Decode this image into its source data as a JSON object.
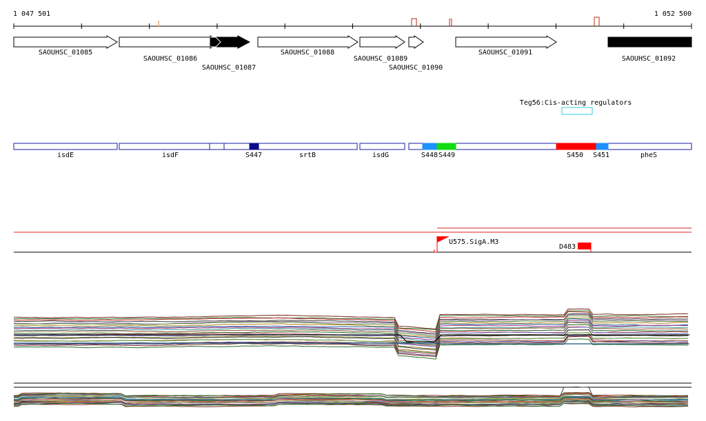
{
  "ruler": {
    "start_label": "1 047 501",
    "end_label": "1 052 500"
  },
  "genes": [
    {
      "id": "SAOUHSC_01085",
      "label": "SAOUHSC_01085",
      "style": "outline",
      "strand": "+"
    },
    {
      "id": "SAOUHSC_01086",
      "label": "SAOUHSC_01086",
      "style": "outline",
      "strand": "+"
    },
    {
      "id": "SAOUHSC_01087",
      "label": "SAOUHSC_01087",
      "style": "filled",
      "strand": "+"
    },
    {
      "id": "SAOUHSC_01088",
      "label": "SAOUHSC_01088",
      "style": "outline",
      "strand": "+"
    },
    {
      "id": "SAOUHSC_01089",
      "label": "SAOUHSC_01089",
      "style": "outline",
      "strand": "+"
    },
    {
      "id": "SAOUHSC_01090",
      "label": "SAOUHSC_01090",
      "style": "outline",
      "strand": "+"
    },
    {
      "id": "SAOUHSC_01091",
      "label": "SAOUHSC_01091",
      "style": "outline",
      "strand": "+"
    },
    {
      "id": "SAOUHSC_01092",
      "label": "SAOUHSC_01092",
      "style": "filled",
      "strand": "+"
    }
  ],
  "regulator": {
    "label": "Teg56:Cis-acting regulators",
    "color": "#33ccdd"
  },
  "segments": {
    "named": [
      "isdE",
      "isdF",
      "S447",
      "srtB",
      "isdG",
      "S448",
      "S449",
      "S450",
      "S451",
      "pheS"
    ],
    "colors": {
      "outline": "#1a1aa0",
      "S447": "#0a0a8c",
      "S448": "#1e90ff",
      "S449": "#11dd11",
      "S450": "#ff0000",
      "S451": "#1e90ff"
    }
  },
  "features": {
    "promoter": {
      "label": "U575.SigA.M3",
      "color": "#ff0000"
    },
    "terminator": {
      "label": "D483",
      "color": "#ff0000"
    }
  },
  "expression": {
    "panels": 2,
    "palette": [
      "#7a2a1a",
      "#2a6e2a",
      "#c03030",
      "#404040",
      "#8a6aa0",
      "#5a8a3a",
      "#b08020",
      "#2060a0",
      "#a0307a",
      "#3a9a9a",
      "#905030",
      "#206020",
      "#d06060",
      "#6060c0",
      "#909030",
      "#303030",
      "#c07030",
      "#50a050",
      "#a04040",
      "#4a4a8a"
    ]
  }
}
